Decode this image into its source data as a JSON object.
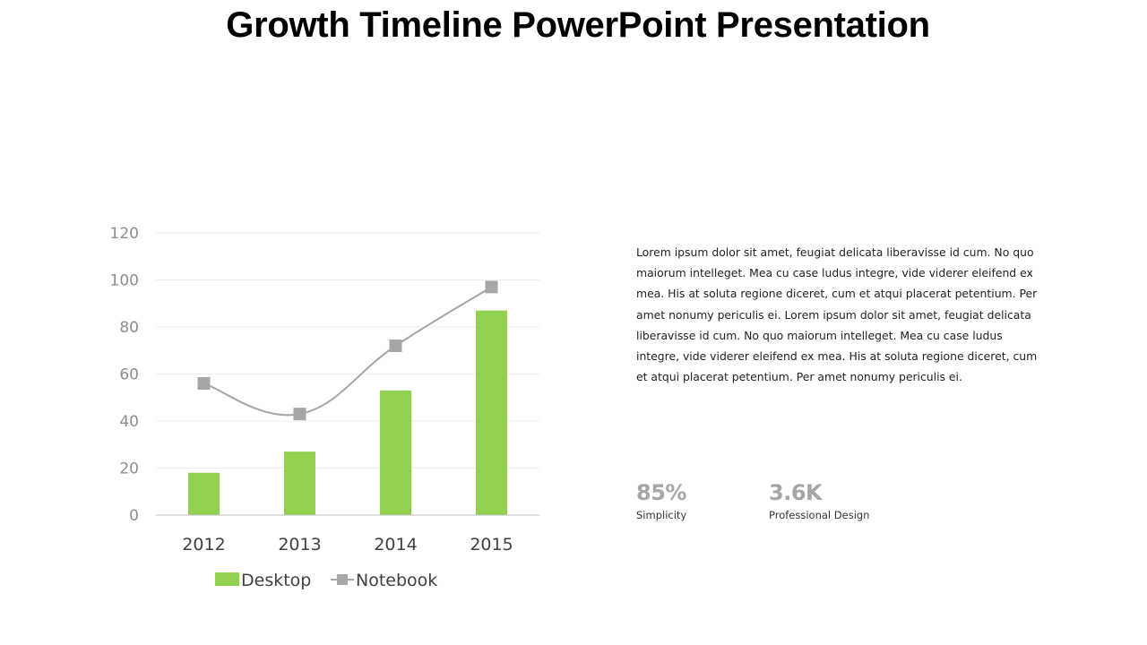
{
  "slide": {
    "title": "Growth Timeline PowerPoint Presentation",
    "body_text": "Lorem ipsum dolor sit amet, feugiat delicata liberavisse id cum. No quo maiorum intelleget. Mea cu case ludus integre, vide viderer eleifend ex mea. His at soluta regione diceret, cum et atqui placerat petentium. Per amet nonumy periculis ei. Lorem ipsum dolor sit amet, feugiat delicata liberavisse id cum. No quo maiorum intelleget. Mea cu case ludus integre, vide viderer eleifend ex mea. His at soluta regione diceret, cum et atqui placerat petentium. Per amet nonumy periculis ei.",
    "stats": [
      {
        "value": "85%",
        "label": "Simplicity"
      },
      {
        "value": "3.6K",
        "label": "Professional Design"
      }
    ]
  },
  "colors": {
    "desktop": "#92d050",
    "notebook": "#a6a6a6",
    "gridline": "#ededed",
    "axis": "#bfbfbf"
  },
  "chart_data": {
    "type": "bar",
    "title": "",
    "xlabel": "",
    "ylabel": "",
    "categories": [
      "2012",
      "2013",
      "2014",
      "2015"
    ],
    "ylim": [
      0,
      120
    ],
    "yticks": [
      0,
      20,
      40,
      60,
      80,
      100,
      120
    ],
    "grid": true,
    "legend_position": "bottom",
    "series": [
      {
        "name": "Desktop",
        "type": "bar",
        "values": [
          18,
          27,
          53,
          87
        ]
      },
      {
        "name": "Notebook",
        "type": "line",
        "smooth": true,
        "marker": "square",
        "values": [
          56,
          43,
          72,
          97
        ]
      }
    ]
  }
}
